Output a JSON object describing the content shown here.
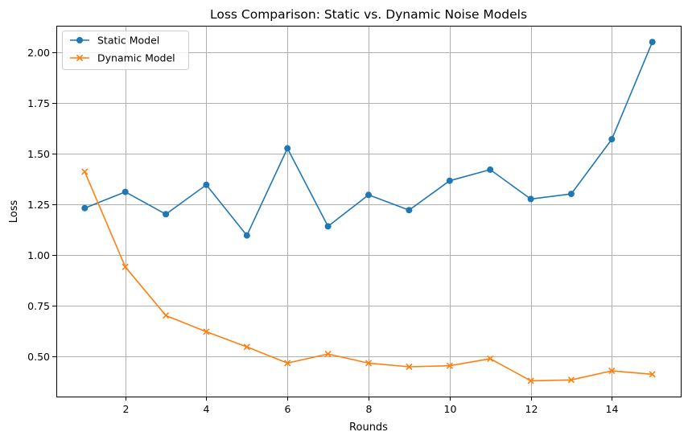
{
  "chart_data": {
    "type": "line",
    "title": "Loss Comparison: Static vs. Dynamic Noise Models",
    "xlabel": "Rounds",
    "ylabel": "Loss",
    "x": [
      1,
      2,
      3,
      4,
      5,
      6,
      7,
      8,
      9,
      10,
      11,
      12,
      13,
      14,
      15
    ],
    "xticks": [
      2,
      4,
      6,
      8,
      10,
      12,
      14
    ],
    "xtick_labels": [
      "2",
      "4",
      "6",
      "8",
      "10",
      "12",
      "14"
    ],
    "yticks": [
      0.5,
      0.75,
      1.0,
      1.25,
      1.5,
      1.75,
      2.0
    ],
    "ytick_labels": [
      "0.50",
      "0.75",
      "1.00",
      "1.25",
      "1.50",
      "1.75",
      "2.00"
    ],
    "xlim": [
      0.3,
      15.7
    ],
    "ylim": [
      0.3,
      2.13
    ],
    "grid": true,
    "legend_position": "top-left",
    "series": [
      {
        "name": "Static Model",
        "color": "#1f77b4",
        "marker": "circle",
        "values": [
          1.23,
          1.31,
          1.2,
          1.345,
          1.095,
          1.525,
          1.14,
          1.295,
          1.22,
          1.365,
          1.42,
          1.275,
          1.3,
          1.57,
          2.05
        ]
      },
      {
        "name": "Dynamic Model",
        "color": "#ff7f0e",
        "marker": "x",
        "values": [
          1.41,
          0.94,
          0.7,
          0.62,
          0.545,
          0.465,
          0.51,
          0.465,
          0.447,
          0.452,
          0.487,
          0.378,
          0.382,
          0.427,
          0.41
        ]
      }
    ]
  }
}
